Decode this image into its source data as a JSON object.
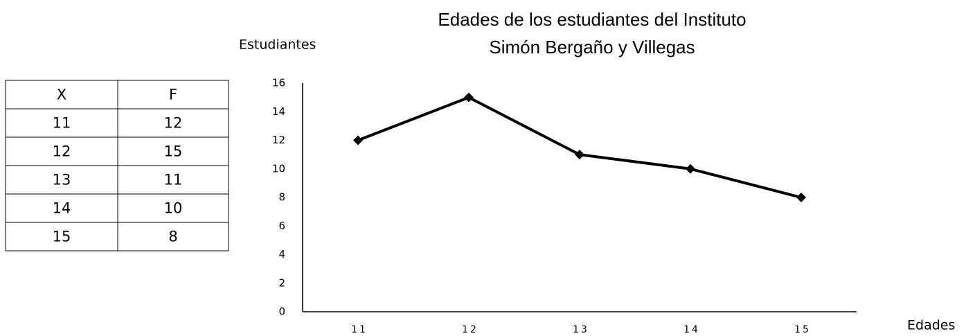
{
  "table": {
    "header": [
      "X",
      "F"
    ],
    "rows": [
      [
        "11",
        "12"
      ],
      [
        "12",
        "15"
      ],
      [
        "13",
        "11"
      ],
      [
        "14",
        "10"
      ],
      [
        "15",
        "8"
      ]
    ]
  },
  "chart_data": {
    "type": "line",
    "title": [
      "Edades de los estudiantes del Instituto",
      "Simón Bergaño y Villegas"
    ],
    "y_label": "Estudiantes",
    "x_label": "Edades",
    "categories": [
      "11",
      "12",
      "13",
      "14",
      "15"
    ],
    "series": [
      {
        "name": "F",
        "color": "#000000",
        "values": [
          12,
          15,
          11,
          10,
          8
        ]
      }
    ],
    "ylim": [
      0,
      16
    ],
    "yticks": [
      0,
      2,
      4,
      6,
      8,
      10,
      12,
      14,
      16
    ],
    "grid": false
  }
}
